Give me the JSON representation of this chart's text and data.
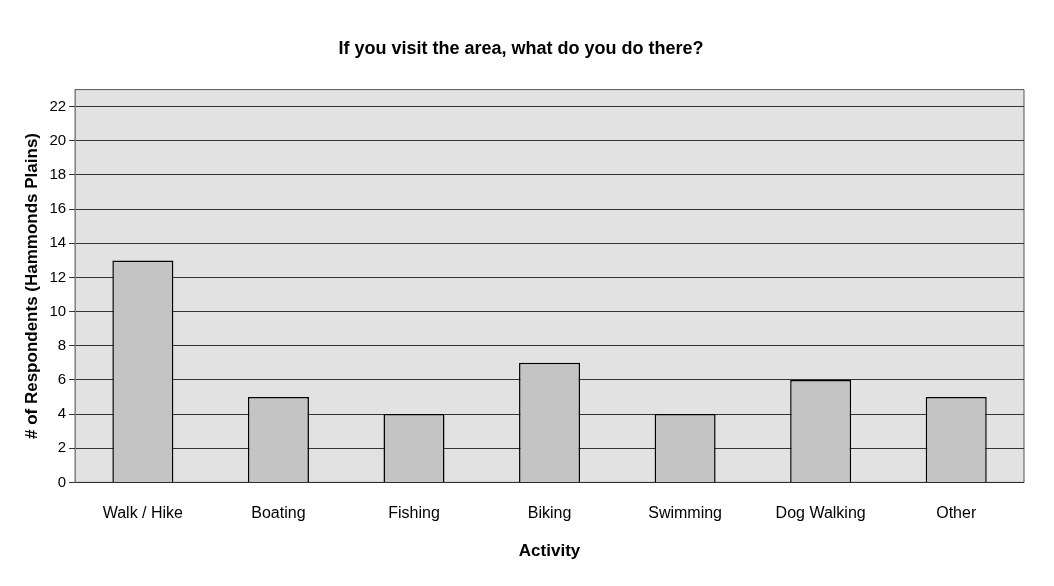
{
  "chart_data": {
    "type": "bar",
    "title": "If you visit the area, what do you do there?",
    "xlabel": "Activity",
    "ylabel": "# of Respondents (Hammonds Plains)",
    "categories": [
      "Walk / Hike",
      "Boating",
      "Fishing",
      "Biking",
      "Swimming",
      "Dog Walking",
      "Other"
    ],
    "values": [
      13,
      5,
      4,
      7,
      4,
      6,
      5
    ],
    "color": "#c4c4c4",
    "ylim": [
      0,
      23
    ],
    "yticks": [
      0,
      2,
      4,
      6,
      8,
      10,
      12,
      14,
      16,
      18,
      20,
      22
    ],
    "grid": "y",
    "legend": false
  }
}
